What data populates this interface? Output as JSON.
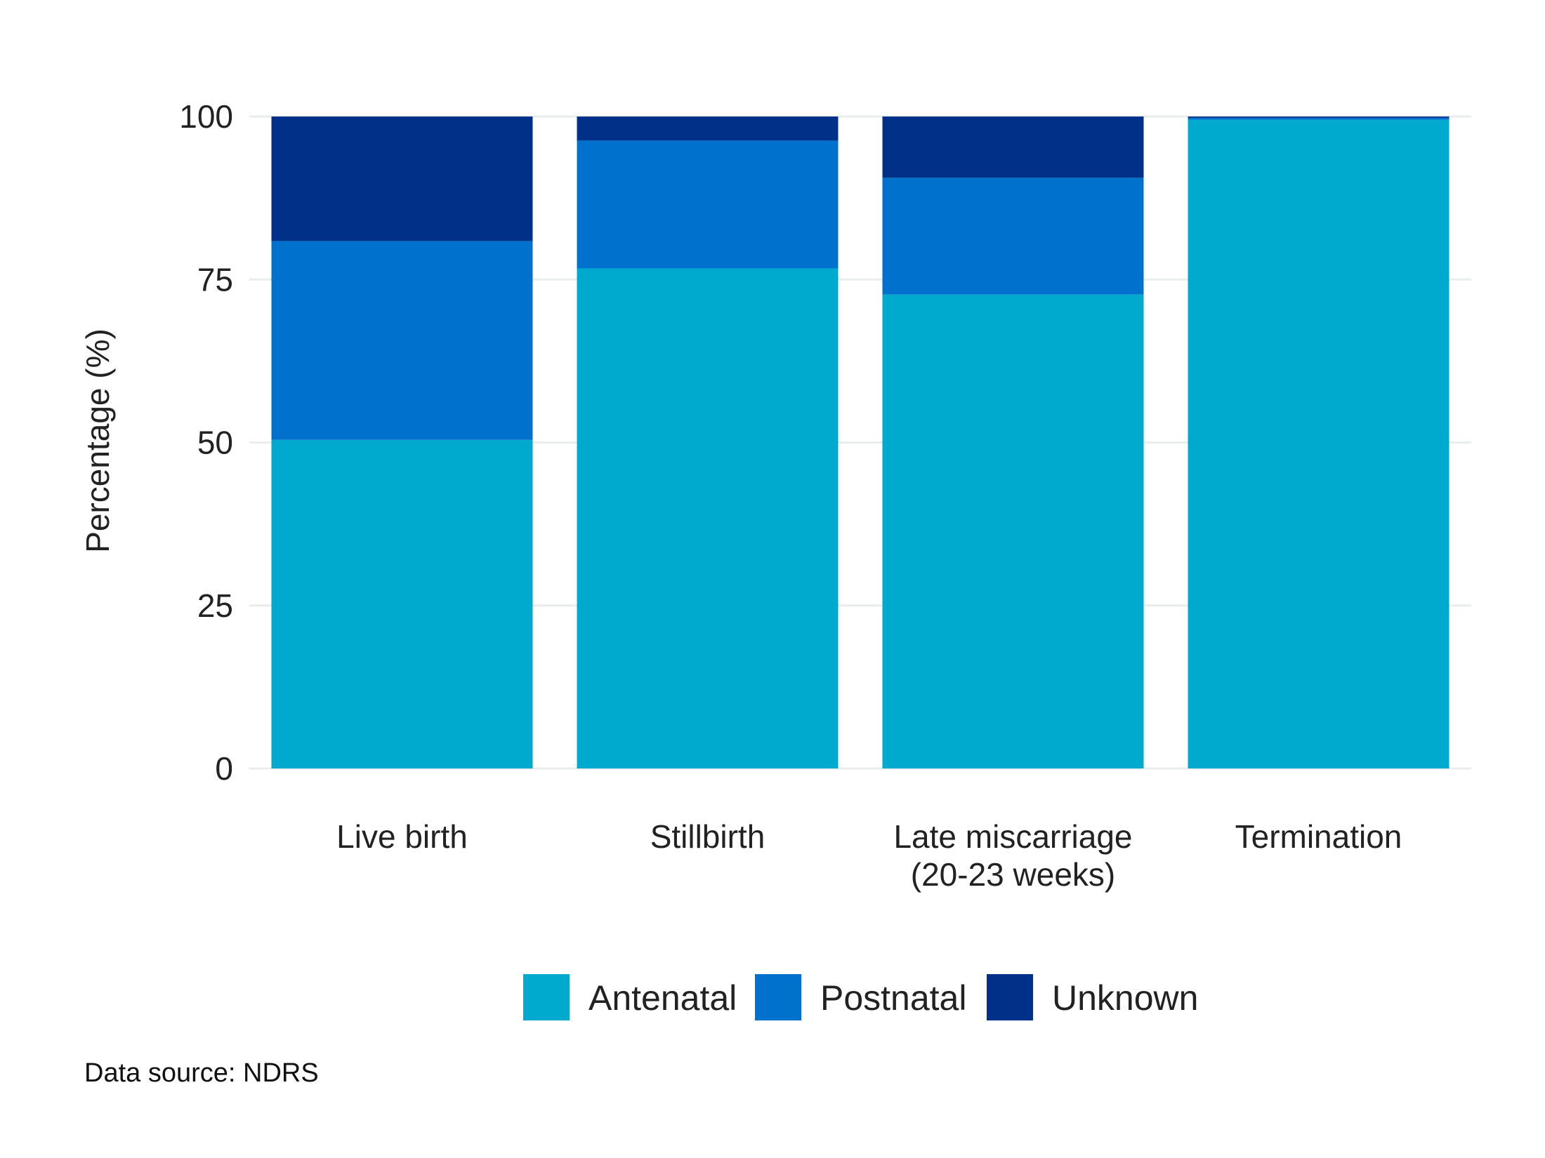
{
  "chart_data": {
    "type": "bar",
    "stacked": true,
    "categories": [
      "Live birth",
      "Stillbirth",
      "Late miscarriage\n(20-23 weeks)",
      "Termination"
    ],
    "series": [
      {
        "name": "Antenatal",
        "color": "#00A9CE",
        "values": [
          50.4,
          76.7,
          72.7,
          99.5
        ]
      },
      {
        "name": "Postnatal",
        "color": "#0072CE",
        "values": [
          30.5,
          19.6,
          17.9,
          0.3
        ]
      },
      {
        "name": "Unknown",
        "color": "#003087",
        "values": [
          19.1,
          3.7,
          9.4,
          0.2
        ]
      }
    ],
    "ylabel": "Percentage (%)",
    "xlabel": "",
    "ylim": [
      0,
      100
    ],
    "yticks": [
      0,
      25,
      50,
      75,
      100
    ],
    "grid": "horizontal",
    "legend_position": "bottom",
    "gridline_color": "#E8EDEE"
  },
  "source_note": "Data source: NDRS"
}
